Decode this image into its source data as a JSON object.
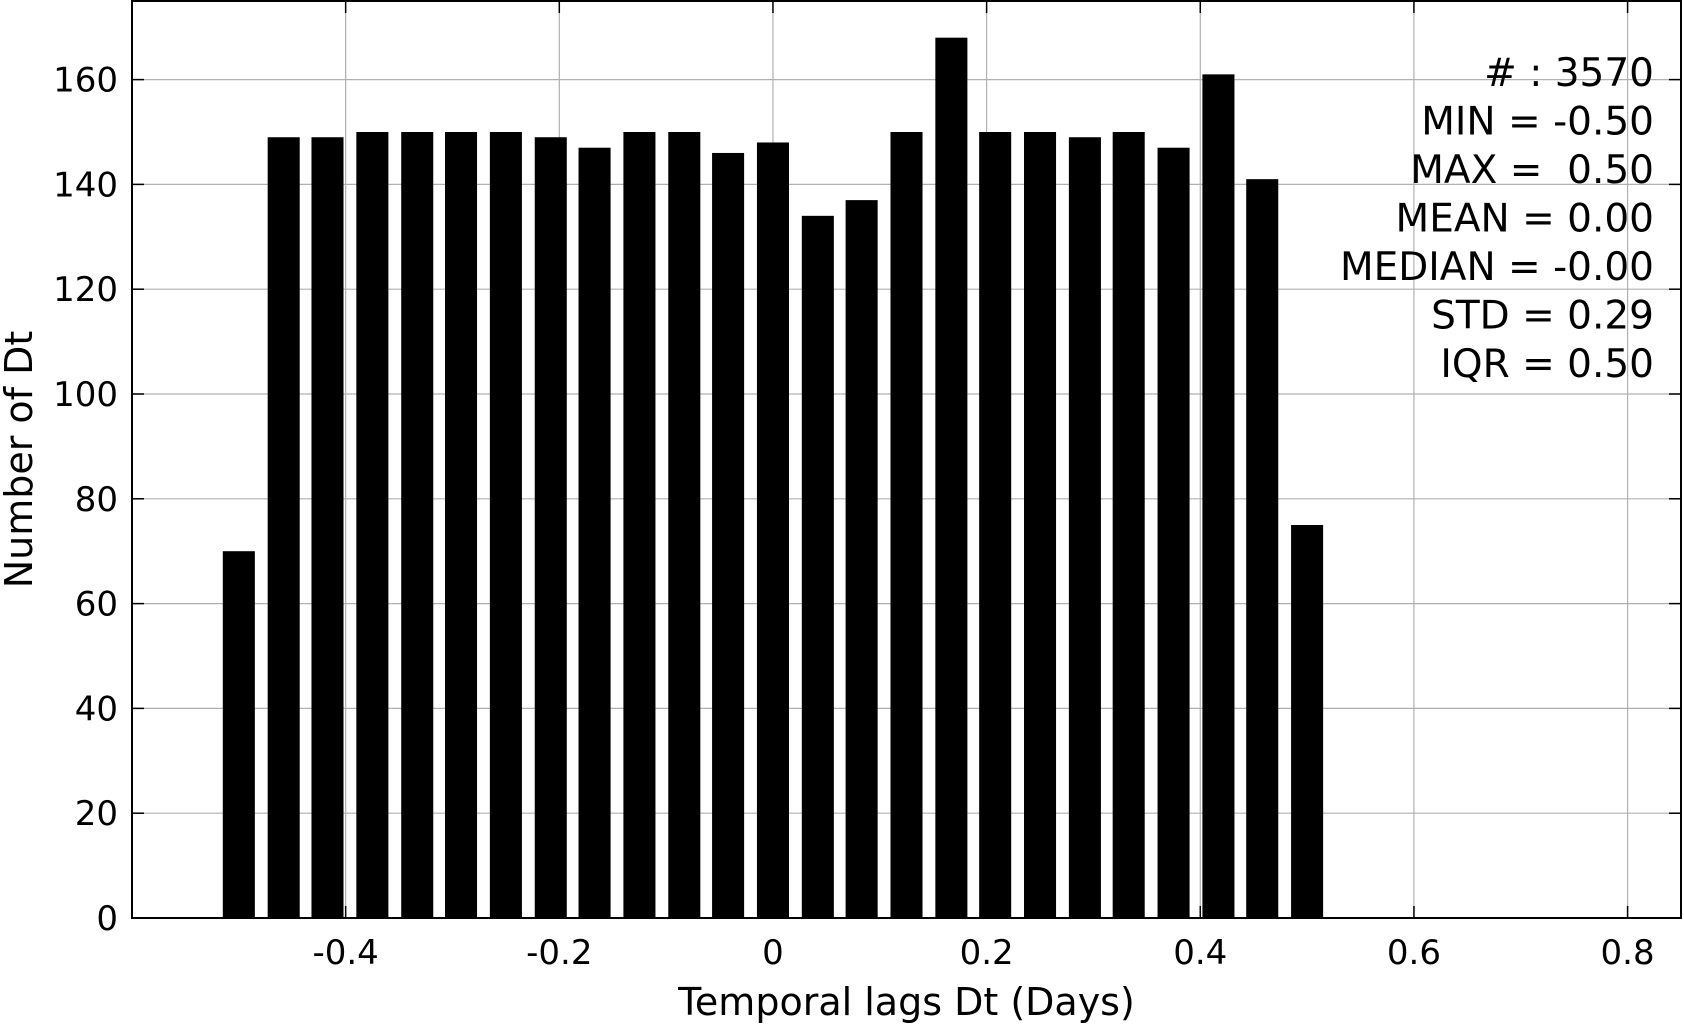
{
  "chart_data": {
    "type": "bar",
    "xlabel": "Temporal lags Dt (Days)",
    "ylabel": "Number of Dt",
    "xlim": [
      -0.6,
      0.85
    ],
    "ylim": [
      0,
      175
    ],
    "xticks": [
      -0.4,
      -0.2,
      0,
      0.2,
      0.4,
      0.6,
      0.8
    ],
    "xtick_labels": [
      "-0.4",
      "-0.2",
      "0",
      "0.2",
      "0.4",
      "0.6",
      "0.8"
    ],
    "yticks": [
      0,
      20,
      40,
      60,
      80,
      100,
      120,
      140,
      160
    ],
    "ytick_labels": [
      "0",
      "20",
      "40",
      "60",
      "80",
      "100",
      "120",
      "140",
      "160"
    ],
    "grid": true,
    "bar_color": "#000000",
    "bar_width": 0.03,
    "x": [
      -0.5,
      -0.458,
      -0.417,
      -0.375,
      -0.333,
      -0.292,
      -0.25,
      -0.208,
      -0.167,
      -0.125,
      -0.083,
      -0.042,
      0.0,
      0.042,
      0.083,
      0.125,
      0.167,
      0.208,
      0.25,
      0.292,
      0.333,
      0.375,
      0.417,
      0.458,
      0.5
    ],
    "values": [
      70,
      149,
      149,
      150,
      150,
      150,
      150,
      149,
      147,
      150,
      150,
      146,
      148,
      134,
      137,
      150,
      168,
      150,
      150,
      149,
      150,
      147,
      161,
      141,
      75
    ],
    "annotations": [
      "# : 3570",
      "MIN = -0.50",
      "MAX =  0.50",
      "MEAN = 0.00",
      "MEDIAN = -0.00",
      "STD = 0.29",
      "IQR = 0.50"
    ]
  }
}
